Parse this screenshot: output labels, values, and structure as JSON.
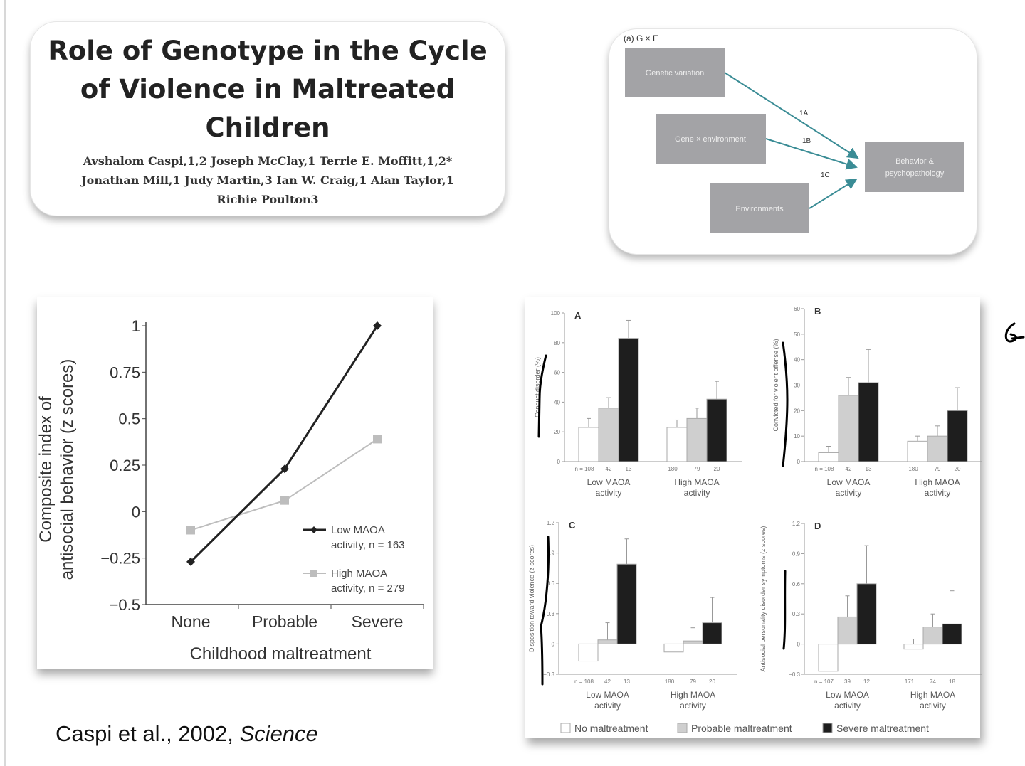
{
  "title_box": {
    "title": "Role of Genotype in the Cycle of Violence in Maltreated Children",
    "authors": "Avshalom Caspi,1,2 Joseph McClay,1 Terrie E. Moffitt,1,2* Jonathan Mill,1 Judy Martin,3 Ian W. Craig,1 Alan Taylor,1 Richie Poulton3"
  },
  "diagram": {
    "label": "(a) G × E",
    "nodes": [
      "Genetic variation",
      "Gene × environment",
      "Environments",
      "Behavior & psychopathology"
    ],
    "edge_labels": [
      "1A",
      "1B",
      "1C"
    ],
    "box_color": "#a3a3a6",
    "arrow_color": "#3a8c95"
  },
  "citation": {
    "authors": "Caspi et al., 2002, ",
    "journal": "Science"
  },
  "chart_data": [
    {
      "type": "line",
      "xlabel": "Childhood maltreatment",
      "ylabel": "Composite index of antisocial behavior (z scores)",
      "categories": [
        "None",
        "Probable",
        "Severe"
      ],
      "ylim": [
        -0.5,
        1
      ],
      "yticks": [
        "1",
        "0.75",
        "0.5",
        "0.25",
        "0",
        "−0.25",
        "−0.5"
      ],
      "ytick_values": [
        1,
        0.75,
        0.5,
        0.25,
        0,
        -0.25,
        -0.5
      ],
      "legend": "bottom-right",
      "series": [
        {
          "name": "Low MAOA activity, n = 163",
          "legend_line1": "Low MAOA",
          "legend_line2": "activity, n = 163",
          "values": [
            -0.27,
            0.23,
            1.0
          ],
          "color": "#222222",
          "marker": "diamond"
        },
        {
          "name": "High MAOA activity, n = 279",
          "legend_line1": "High MAOA",
          "legend_line2": "activity, n = 279",
          "values": [
            -0.1,
            0.06,
            0.39
          ],
          "color": "#bdbdbd",
          "marker": "square"
        }
      ]
    },
    {
      "type": "bar",
      "panel": "A",
      "ylabel": "Conduct disorder (%)",
      "ylim": [
        0,
        100
      ],
      "yticks": [
        "0",
        "20",
        "40",
        "60",
        "80",
        "100"
      ],
      "ytick_values": [
        0,
        20,
        40,
        60,
        80,
        100
      ],
      "groups": [
        {
          "label1": "Low MAOA",
          "label2": "activity",
          "n": [
            "n = 108",
            "42",
            "13"
          ],
          "values": [
            23,
            36,
            83
          ],
          "error_top": [
            29,
            43,
            95
          ]
        },
        {
          "label1": "High MAOA",
          "label2": "activity",
          "n": [
            "180",
            "79",
            "20"
          ],
          "values": [
            23,
            29,
            42
          ],
          "error_top": [
            28,
            36,
            54
          ]
        }
      ]
    },
    {
      "type": "bar",
      "panel": "B",
      "ylabel": "Convicted for violent offense (%)",
      "ylim": [
        0,
        60
      ],
      "yticks": [
        "0",
        "10",
        "20",
        "30",
        "40",
        "50",
        "60"
      ],
      "ytick_values": [
        0,
        10,
        20,
        30,
        40,
        50,
        60
      ],
      "groups": [
        {
          "label1": "Low MAOA",
          "label2": "activity",
          "n": [
            "n = 108",
            "42",
            "13"
          ],
          "values": [
            3.5,
            26,
            31
          ],
          "error_top": [
            6,
            33,
            44
          ]
        },
        {
          "label1": "High MAOA",
          "label2": "activity",
          "n": [
            "180",
            "79",
            "20"
          ],
          "values": [
            8,
            10,
            20
          ],
          "error_top": [
            10,
            14,
            29
          ]
        }
      ]
    },
    {
      "type": "bar",
      "panel": "C",
      "ylabel": "Disposition toward violence (z scores)",
      "ylim": [
        -0.3,
        1.2
      ],
      "yticks": [
        "−0.3",
        "0",
        "0.3",
        "0.6",
        "0.9",
        "1.2"
      ],
      "ytick_values": [
        -0.3,
        0,
        0.3,
        0.6,
        0.9,
        1.2
      ],
      "groups": [
        {
          "label1": "Low MAOA",
          "label2": "activity",
          "n": [
            "n = 108",
            "42",
            "13"
          ],
          "values": [
            -0.17,
            0.04,
            0.79
          ],
          "error_top": [
            -0.06,
            0.21,
            1.04
          ]
        },
        {
          "label1": "High MAOA",
          "label2": "activity",
          "n": [
            "180",
            "79",
            "20"
          ],
          "values": [
            -0.08,
            0.03,
            0.21
          ],
          "error_top": [
            -0.01,
            0.16,
            0.46
          ]
        }
      ]
    },
    {
      "type": "bar",
      "panel": "D",
      "ylabel": "Antisocial personality disorder symptoms (z scores)",
      "ylim": [
        -0.3,
        1.2
      ],
      "yticks": [
        "−0.3",
        "0",
        "0.3",
        "0.6",
        "0.9",
        "1.2"
      ],
      "ytick_values": [
        -0.3,
        0,
        0.3,
        0.6,
        0.9,
        1.2
      ],
      "groups": [
        {
          "label1": "Low MAOA",
          "label2": "activity",
          "n": [
            "n = 107",
            "39",
            "12"
          ],
          "values": [
            -0.27,
            0.27,
            0.6
          ],
          "error_top": [
            -0.19,
            0.48,
            0.98
          ]
        },
        {
          "label1": "High MAOA",
          "label2": "activity",
          "n": [
            "171",
            "74",
            "18"
          ],
          "values": [
            -0.05,
            0.17,
            0.2
          ],
          "error_top": [
            0.05,
            0.3,
            0.53
          ]
        }
      ]
    }
  ],
  "bar_legend": [
    {
      "label": "No maltreatment",
      "color": "#ffffff"
    },
    {
      "label": "Probable maltreatment",
      "color": "#cfcfcf"
    },
    {
      "label": "Severe maltreatment",
      "color": "#1e1e1e"
    }
  ]
}
